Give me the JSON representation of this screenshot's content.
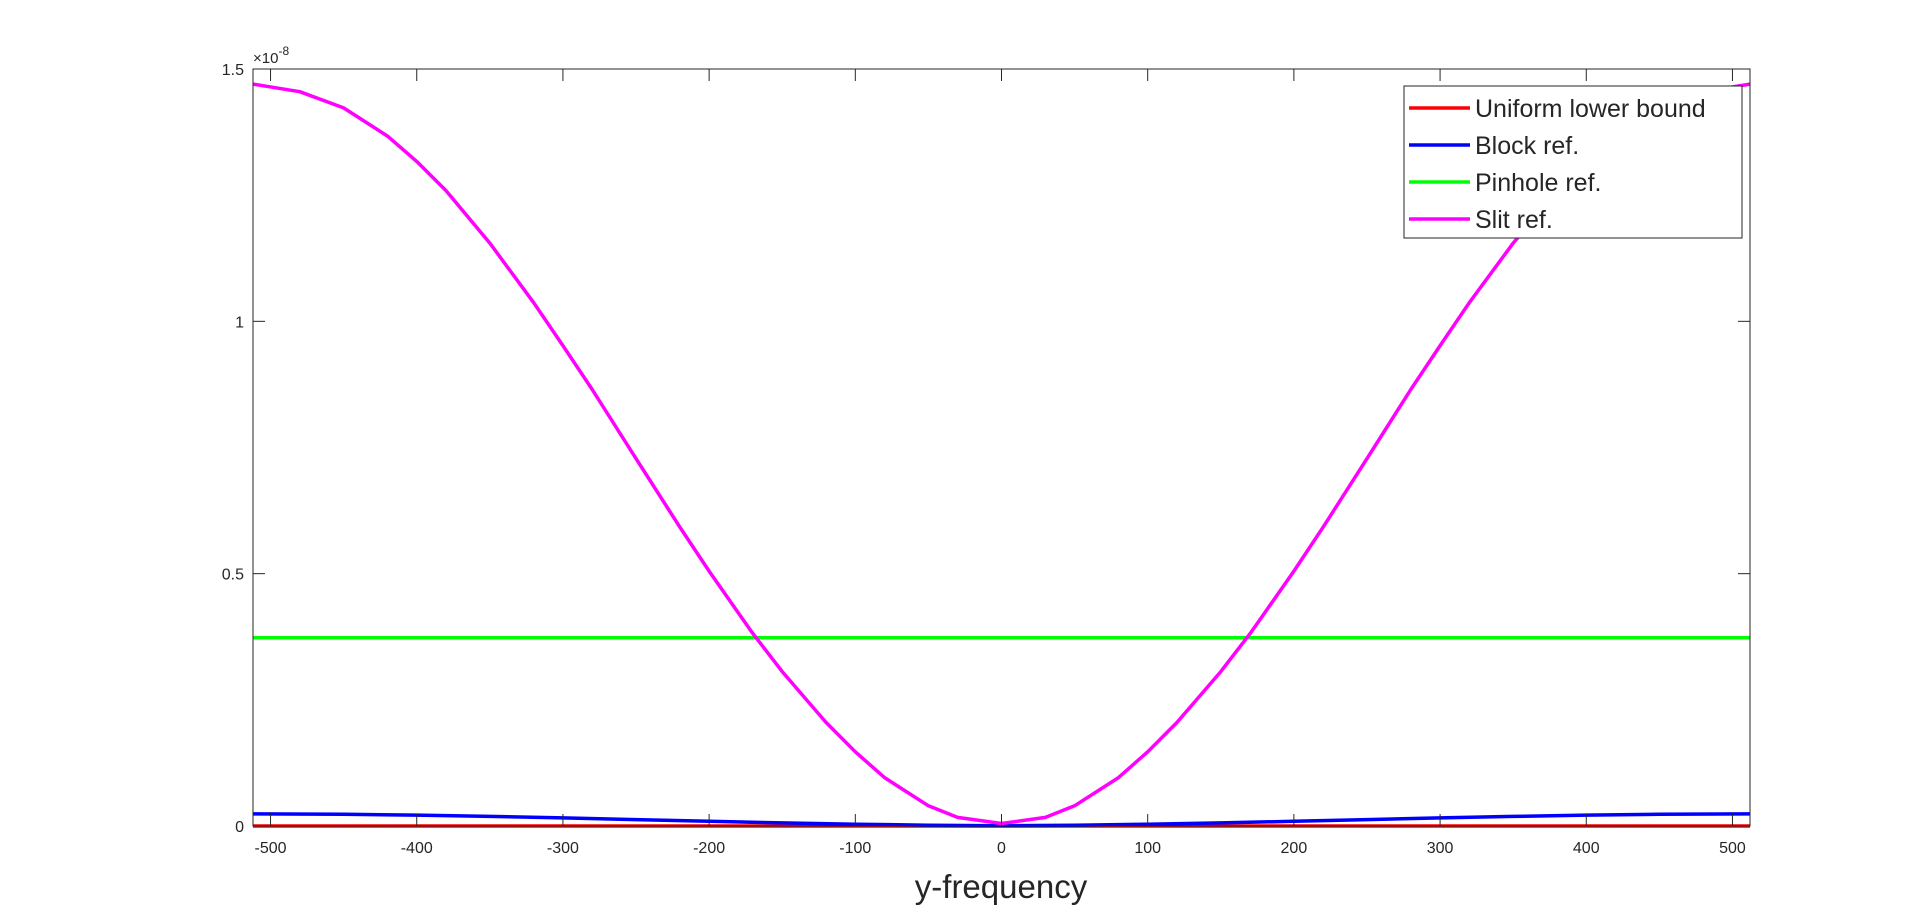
{
  "chart_data": {
    "type": "line",
    "title": "",
    "xlabel": "y-frequency",
    "ylabel": "",
    "xlim": [
      -512,
      512
    ],
    "ylim": [
      0,
      1.5
    ],
    "y_exponent_label": "×10",
    "y_exponent_power": "-8",
    "xticks": [
      -500,
      -400,
      -300,
      -200,
      -100,
      0,
      100,
      200,
      300,
      400,
      500
    ],
    "xtick_labels": [
      "-500",
      "-400",
      "-300",
      "-200",
      "-100",
      "0",
      "100",
      "200",
      "300",
      "400",
      "500"
    ],
    "yticks": [
      0,
      0.5,
      1,
      1.5
    ],
    "ytick_labels": [
      "0",
      "0.5",
      "1",
      "1.5"
    ],
    "grid": false,
    "legend_position": "top-right",
    "series": [
      {
        "name": "Uniform lower bound",
        "color": "#ff0000",
        "x": [
          -512,
          512
        ],
        "y": [
          0.0,
          0.0
        ]
      },
      {
        "name": "Block ref.",
        "color": "#0000ff",
        "x": [
          -512,
          -450,
          -400,
          -350,
          -300,
          -250,
          -200,
          -150,
          -100,
          -50,
          0,
          50,
          100,
          150,
          200,
          250,
          300,
          350,
          400,
          450,
          512
        ],
        "y": [
          0.024,
          0.0232,
          0.0215,
          0.0191,
          0.016,
          0.0127,
          0.0093,
          0.0062,
          0.0036,
          0.0016,
          0.0004,
          0.0016,
          0.0036,
          0.0062,
          0.0093,
          0.0127,
          0.016,
          0.0191,
          0.0215,
          0.0232,
          0.024
        ]
      },
      {
        "name": "Pinhole ref.",
        "color": "#00ff00",
        "x": [
          -512,
          512
        ],
        "y": [
          0.373,
          0.373
        ]
      },
      {
        "name": "Slit ref.",
        "color": "#ff00ff",
        "x": [
          -512,
          -480,
          -450,
          -420,
          -400,
          -380,
          -350,
          -320,
          -300,
          -280,
          -250,
          -220,
          -200,
          -180,
          -170,
          -150,
          -120,
          -100,
          -80,
          -50,
          -30,
          0,
          30,
          50,
          80,
          100,
          120,
          150,
          170,
          180,
          200,
          220,
          250,
          280,
          300,
          320,
          350,
          380,
          400,
          420,
          450,
          480,
          512
        ],
        "y": [
          1.47,
          1.455,
          1.423,
          1.367,
          1.317,
          1.259,
          1.155,
          1.037,
          0.952,
          0.865,
          0.728,
          0.592,
          0.505,
          0.422,
          0.381,
          0.306,
          0.205,
          0.147,
          0.096,
          0.04,
          0.017,
          0.005,
          0.017,
          0.04,
          0.096,
          0.147,
          0.205,
          0.306,
          0.381,
          0.422,
          0.505,
          0.592,
          0.728,
          0.865,
          0.952,
          1.037,
          1.155,
          1.259,
          1.317,
          1.367,
          1.423,
          1.455,
          1.47
        ]
      }
    ]
  }
}
